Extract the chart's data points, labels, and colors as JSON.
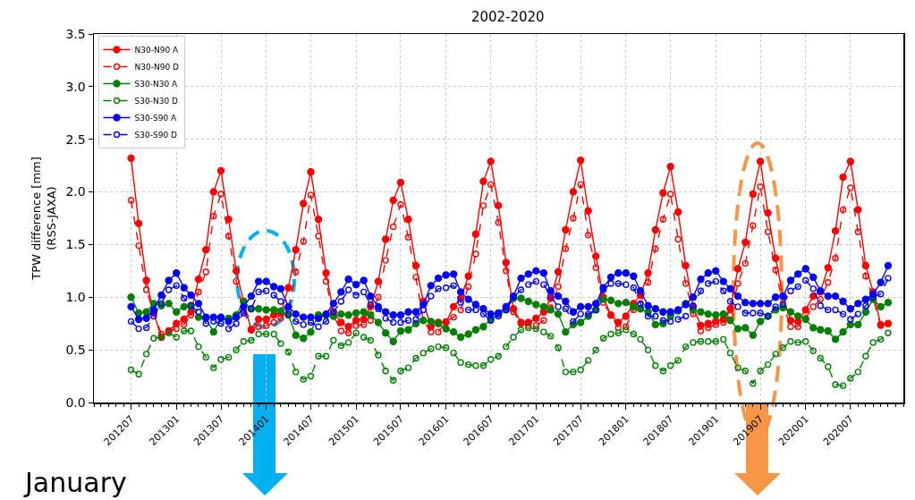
{
  "chart_data": {
    "type": "line",
    "title": "2002-2020",
    "ylabel": "TPW difference [mm]\n(RSS-JAXA)",
    "annotations": [
      "January"
    ],
    "x": [
      "2012-07",
      "2012-08",
      "2012-09",
      "2012-10",
      "2012-11",
      "2012-12",
      "2013-01",
      "2013-02",
      "2013-03",
      "2013-04",
      "2013-05",
      "2013-06",
      "2013-07",
      "2013-08",
      "2013-09",
      "2013-10",
      "2013-11",
      "2013-12",
      "2014-01",
      "2014-02",
      "2014-03",
      "2014-04",
      "2014-05",
      "2014-06",
      "2014-07",
      "2014-08",
      "2014-09",
      "2014-10",
      "2014-11",
      "2014-12",
      "2015-01",
      "2015-02",
      "2015-03",
      "2015-04",
      "2015-05",
      "2015-06",
      "2015-07",
      "2015-08",
      "2015-09",
      "2015-10",
      "2015-11",
      "2015-12",
      "2016-01",
      "2016-02",
      "2016-03",
      "2016-04",
      "2016-05",
      "2016-06",
      "2016-07",
      "2016-08",
      "2016-09",
      "2016-10",
      "2016-11",
      "2016-12",
      "2017-01",
      "2017-02",
      "2017-03",
      "2017-04",
      "2017-05",
      "2017-06",
      "2017-07",
      "2017-08",
      "2017-09",
      "2017-10",
      "2017-11",
      "2017-12",
      "2018-01",
      "2018-02",
      "2018-03",
      "2018-04",
      "2018-05",
      "2018-06",
      "2018-07",
      "2018-08",
      "2018-09",
      "2018-10",
      "2018-11",
      "2018-12",
      "2019-01",
      "2019-02",
      "2019-03",
      "2019-04",
      "2019-05",
      "2019-06",
      "2019-07",
      "2019-08",
      "2019-09",
      "2019-10",
      "2019-11",
      "2019-12",
      "2020-01",
      "2020-02",
      "2020-03",
      "2020-04",
      "2020-05",
      "2020-06",
      "2020-07",
      "2020-08",
      "2020-09",
      "2020-10",
      "2020-11",
      "2020-12"
    ],
    "series": [
      {
        "name": "N30-N90 A",
        "color": "#ff0000",
        "line_style": "solid",
        "values": [
          2.32,
          1.7,
          1.16,
          0.85,
          0.62,
          0.68,
          0.75,
          0.79,
          0.86,
          1.17,
          1.45,
          2.0,
          2.2,
          1.74,
          1.25,
          0.96,
          0.69,
          0.79,
          0.79,
          0.83,
          0.85,
          1.09,
          1.45,
          1.89,
          2.19,
          1.74,
          1.23,
          0.86,
          0.76,
          0.72,
          0.78,
          0.79,
          0.91,
          1.15,
          1.55,
          1.92,
          2.09,
          1.74,
          1.3,
          0.96,
          0.72,
          0.76,
          0.76,
          0.91,
          0.99,
          1.2,
          1.6,
          2.1,
          2.29,
          1.87,
          1.33,
          0.89,
          0.76,
          0.76,
          0.8,
          0.86,
          0.99,
          1.24,
          1.64,
          2.0,
          2.3,
          1.82,
          1.39,
          1.0,
          0.83,
          0.76,
          0.82,
          0.94,
          1.02,
          1.23,
          1.64,
          1.99,
          2.24,
          1.81,
          1.3,
          0.91,
          0.73,
          0.75,
          0.77,
          0.79,
          0.89,
          1.27,
          1.52,
          1.98,
          2.29,
          1.8,
          1.37,
          1.01,
          0.78,
          0.77,
          0.88,
          1.01,
          1.05,
          1.28,
          1.63,
          2.14,
          2.29,
          1.83,
          1.3,
          1.05,
          0.74,
          0.75
        ]
      },
      {
        "name": "N30-N90 D",
        "color": "#ff0000",
        "line_style": "dashed",
        "values": [
          1.92,
          1.49,
          1.07,
          0.85,
          0.65,
          0.68,
          0.7,
          0.74,
          0.83,
          1.05,
          1.24,
          1.77,
          1.98,
          1.58,
          1.15,
          0.87,
          0.7,
          0.72,
          0.73,
          0.76,
          0.8,
          0.88,
          1.24,
          1.53,
          1.97,
          1.58,
          1.15,
          0.83,
          0.68,
          0.66,
          0.73,
          0.74,
          0.78,
          1.0,
          1.35,
          1.67,
          1.88,
          1.57,
          1.19,
          0.78,
          0.67,
          0.67,
          0.77,
          0.81,
          0.88,
          1.1,
          1.41,
          1.87,
          2.07,
          1.71,
          1.25,
          0.86,
          0.75,
          0.73,
          0.73,
          0.78,
          0.9,
          1.1,
          1.46,
          1.75,
          2.07,
          1.59,
          1.28,
          0.95,
          0.83,
          0.71,
          0.72,
          0.88,
          0.93,
          1.14,
          1.46,
          1.74,
          1.98,
          1.55,
          1.13,
          0.84,
          0.68,
          0.71,
          0.74,
          0.76,
          0.83,
          1.13,
          1.32,
          1.68,
          2.05,
          1.62,
          1.26,
          0.93,
          0.72,
          0.72,
          0.8,
          0.91,
          0.98,
          1.14,
          1.37,
          1.83,
          2.04,
          1.62,
          1.2,
          0.99,
          0.73,
          0.75
        ]
      },
      {
        "name": "S30-N30 A",
        "color": "#008000",
        "line_style": "solid",
        "values": [
          1.0,
          0.85,
          0.86,
          0.94,
          0.92,
          0.94,
          0.86,
          0.91,
          0.92,
          0.81,
          0.8,
          0.67,
          0.8,
          0.8,
          0.83,
          0.96,
          0.89,
          0.89,
          0.88,
          0.88,
          0.87,
          0.83,
          0.64,
          0.61,
          0.67,
          0.83,
          0.83,
          0.82,
          0.84,
          0.83,
          0.85,
          0.86,
          0.83,
          0.76,
          0.66,
          0.58,
          0.68,
          0.69,
          0.75,
          0.78,
          0.77,
          0.75,
          0.7,
          0.67,
          0.62,
          0.65,
          0.69,
          0.72,
          0.79,
          0.84,
          0.88,
          0.99,
          0.99,
          0.96,
          0.93,
          0.91,
          0.88,
          0.84,
          0.67,
          0.74,
          0.76,
          0.82,
          0.88,
          0.98,
          0.97,
          0.94,
          0.95,
          0.91,
          0.89,
          0.86,
          0.74,
          0.75,
          0.82,
          0.87,
          0.94,
          0.88,
          0.86,
          0.84,
          0.83,
          0.84,
          0.78,
          0.7,
          0.71,
          0.64,
          0.77,
          0.82,
          0.88,
          0.9,
          0.86,
          0.82,
          0.79,
          0.71,
          0.69,
          0.68,
          0.6,
          0.67,
          0.74,
          0.74,
          0.86,
          0.98,
          0.91,
          0.95
        ]
      },
      {
        "name": "S30-N30 D",
        "color": "#008000",
        "line_style": "dashed",
        "values": [
          0.31,
          0.27,
          0.46,
          0.61,
          0.62,
          0.66,
          0.62,
          0.68,
          0.68,
          0.53,
          0.43,
          0.33,
          0.41,
          0.43,
          0.5,
          0.58,
          0.59,
          0.65,
          0.65,
          0.65,
          0.56,
          0.48,
          0.29,
          0.22,
          0.25,
          0.44,
          0.44,
          0.59,
          0.54,
          0.57,
          0.66,
          0.62,
          0.59,
          0.45,
          0.3,
          0.21,
          0.3,
          0.33,
          0.42,
          0.47,
          0.51,
          0.53,
          0.52,
          0.47,
          0.38,
          0.36,
          0.35,
          0.35,
          0.41,
          0.44,
          0.53,
          0.62,
          0.69,
          0.71,
          0.7,
          0.67,
          0.63,
          0.52,
          0.29,
          0.29,
          0.31,
          0.4,
          0.5,
          0.61,
          0.65,
          0.66,
          0.69,
          0.65,
          0.6,
          0.5,
          0.35,
          0.3,
          0.35,
          0.4,
          0.53,
          0.57,
          0.58,
          0.58,
          0.58,
          0.6,
          0.47,
          0.33,
          0.3,
          0.18,
          0.3,
          0.36,
          0.46,
          0.52,
          0.58,
          0.57,
          0.58,
          0.49,
          0.42,
          0.34,
          0.17,
          0.16,
          0.23,
          0.29,
          0.44,
          0.57,
          0.6,
          0.66
        ]
      },
      {
        "name": "S30-S90 A",
        "color": "#0000ff",
        "line_style": "solid",
        "values": [
          0.91,
          0.79,
          0.8,
          0.88,
          1.02,
          1.16,
          1.23,
          1.09,
          1.02,
          0.94,
          0.81,
          0.81,
          0.81,
          0.77,
          0.81,
          0.91,
          1.01,
          1.15,
          1.15,
          1.1,
          1.08,
          0.91,
          0.84,
          0.81,
          0.81,
          0.8,
          0.84,
          0.94,
          1.05,
          1.17,
          1.12,
          1.16,
          1.01,
          0.91,
          0.86,
          0.83,
          0.83,
          0.86,
          0.86,
          0.93,
          1.11,
          1.18,
          1.21,
          1.22,
          1.05,
          0.98,
          0.93,
          0.89,
          0.84,
          0.85,
          0.91,
          1.01,
          1.18,
          1.22,
          1.25,
          1.23,
          1.06,
          1.01,
          0.96,
          0.86,
          0.91,
          0.91,
          0.94,
          1.09,
          1.19,
          1.23,
          1.23,
          1.2,
          1.06,
          0.92,
          0.89,
          0.86,
          0.86,
          0.88,
          0.93,
          1.0,
          1.17,
          1.23,
          1.25,
          1.15,
          1.08,
          1.01,
          0.95,
          0.94,
          0.94,
          0.94,
          1.0,
          1.01,
          1.16,
          1.22,
          1.27,
          1.19,
          1.06,
          1.01,
          1.01,
          0.96,
          0.89,
          0.94,
          0.98,
          1.03,
          1.14,
          1.3
        ]
      },
      {
        "name": "S30-S90 D",
        "color": "#0000ff",
        "line_style": "dashed",
        "values": [
          0.77,
          0.7,
          0.71,
          0.82,
          0.94,
          1.07,
          1.11,
          0.99,
          0.92,
          0.86,
          0.75,
          0.77,
          0.75,
          0.7,
          0.75,
          0.85,
          0.89,
          1.05,
          1.06,
          1.02,
          0.96,
          0.84,
          0.77,
          0.74,
          0.76,
          0.72,
          0.77,
          0.86,
          0.96,
          1.07,
          1.02,
          1.05,
          0.93,
          0.89,
          0.8,
          0.76,
          0.76,
          0.78,
          0.79,
          0.88,
          1.01,
          1.08,
          1.09,
          1.11,
          0.95,
          0.88,
          0.88,
          0.84,
          0.78,
          0.82,
          0.88,
          1.0,
          1.07,
          1.12,
          1.15,
          1.12,
          1.01,
          0.91,
          0.89,
          0.77,
          0.84,
          0.84,
          0.88,
          1.07,
          1.13,
          1.13,
          1.12,
          1.09,
          0.94,
          0.82,
          0.82,
          0.78,
          0.77,
          0.79,
          0.82,
          0.92,
          1.06,
          1.13,
          1.15,
          1.06,
          0.96,
          0.91,
          0.85,
          0.85,
          0.85,
          0.82,
          0.91,
          0.93,
          1.06,
          1.1,
          1.16,
          1.08,
          0.92,
          0.88,
          0.88,
          0.84,
          0.79,
          0.84,
          0.92,
          1.0,
          1.03,
          1.18
        ]
      }
    ],
    "xlim": [
      "2012-02",
      "2021-02"
    ],
    "xticks": [
      {
        "value": "2012-07",
        "label": "201207"
      },
      {
        "value": "2013-01",
        "label": "201301"
      },
      {
        "value": "2013-07",
        "label": "201307"
      },
      {
        "value": "2014-01",
        "label": "201401"
      },
      {
        "value": "2014-07",
        "label": "201407"
      },
      {
        "value": "2015-01",
        "label": "201501"
      },
      {
        "value": "2015-07",
        "label": "201507"
      },
      {
        "value": "2016-01",
        "label": "201601"
      },
      {
        "value": "2016-07",
        "label": "201607"
      },
      {
        "value": "2017-01",
        "label": "201701"
      },
      {
        "value": "2017-07",
        "label": "201707"
      },
      {
        "value": "2018-01",
        "label": "201801"
      },
      {
        "value": "2018-07",
        "label": "201807"
      },
      {
        "value": "2019-01",
        "label": "201901"
      },
      {
        "value": "2019-07",
        "label": "201907"
      },
      {
        "value": "2020-01",
        "label": "202001"
      },
      {
        "value": "2020-07",
        "label": "202007"
      }
    ],
    "ylim": [
      0,
      3.5
    ],
    "yticks": [
      {
        "value": 0,
        "label": "0.0"
      },
      {
        "value": 0.5,
        "label": "0.5"
      },
      {
        "value": 1,
        "label": "1.0"
      },
      {
        "value": 1.5,
        "label": "1.5"
      },
      {
        "value": 2,
        "label": "2.0"
      },
      {
        "value": 2.5,
        "label": "2.5"
      },
      {
        "value": 3,
        "label": "3.0"
      },
      {
        "value": 3.5,
        "label": "3.5"
      }
    ],
    "grid": true,
    "legend": "top left",
    "marker": "circle"
  }
}
